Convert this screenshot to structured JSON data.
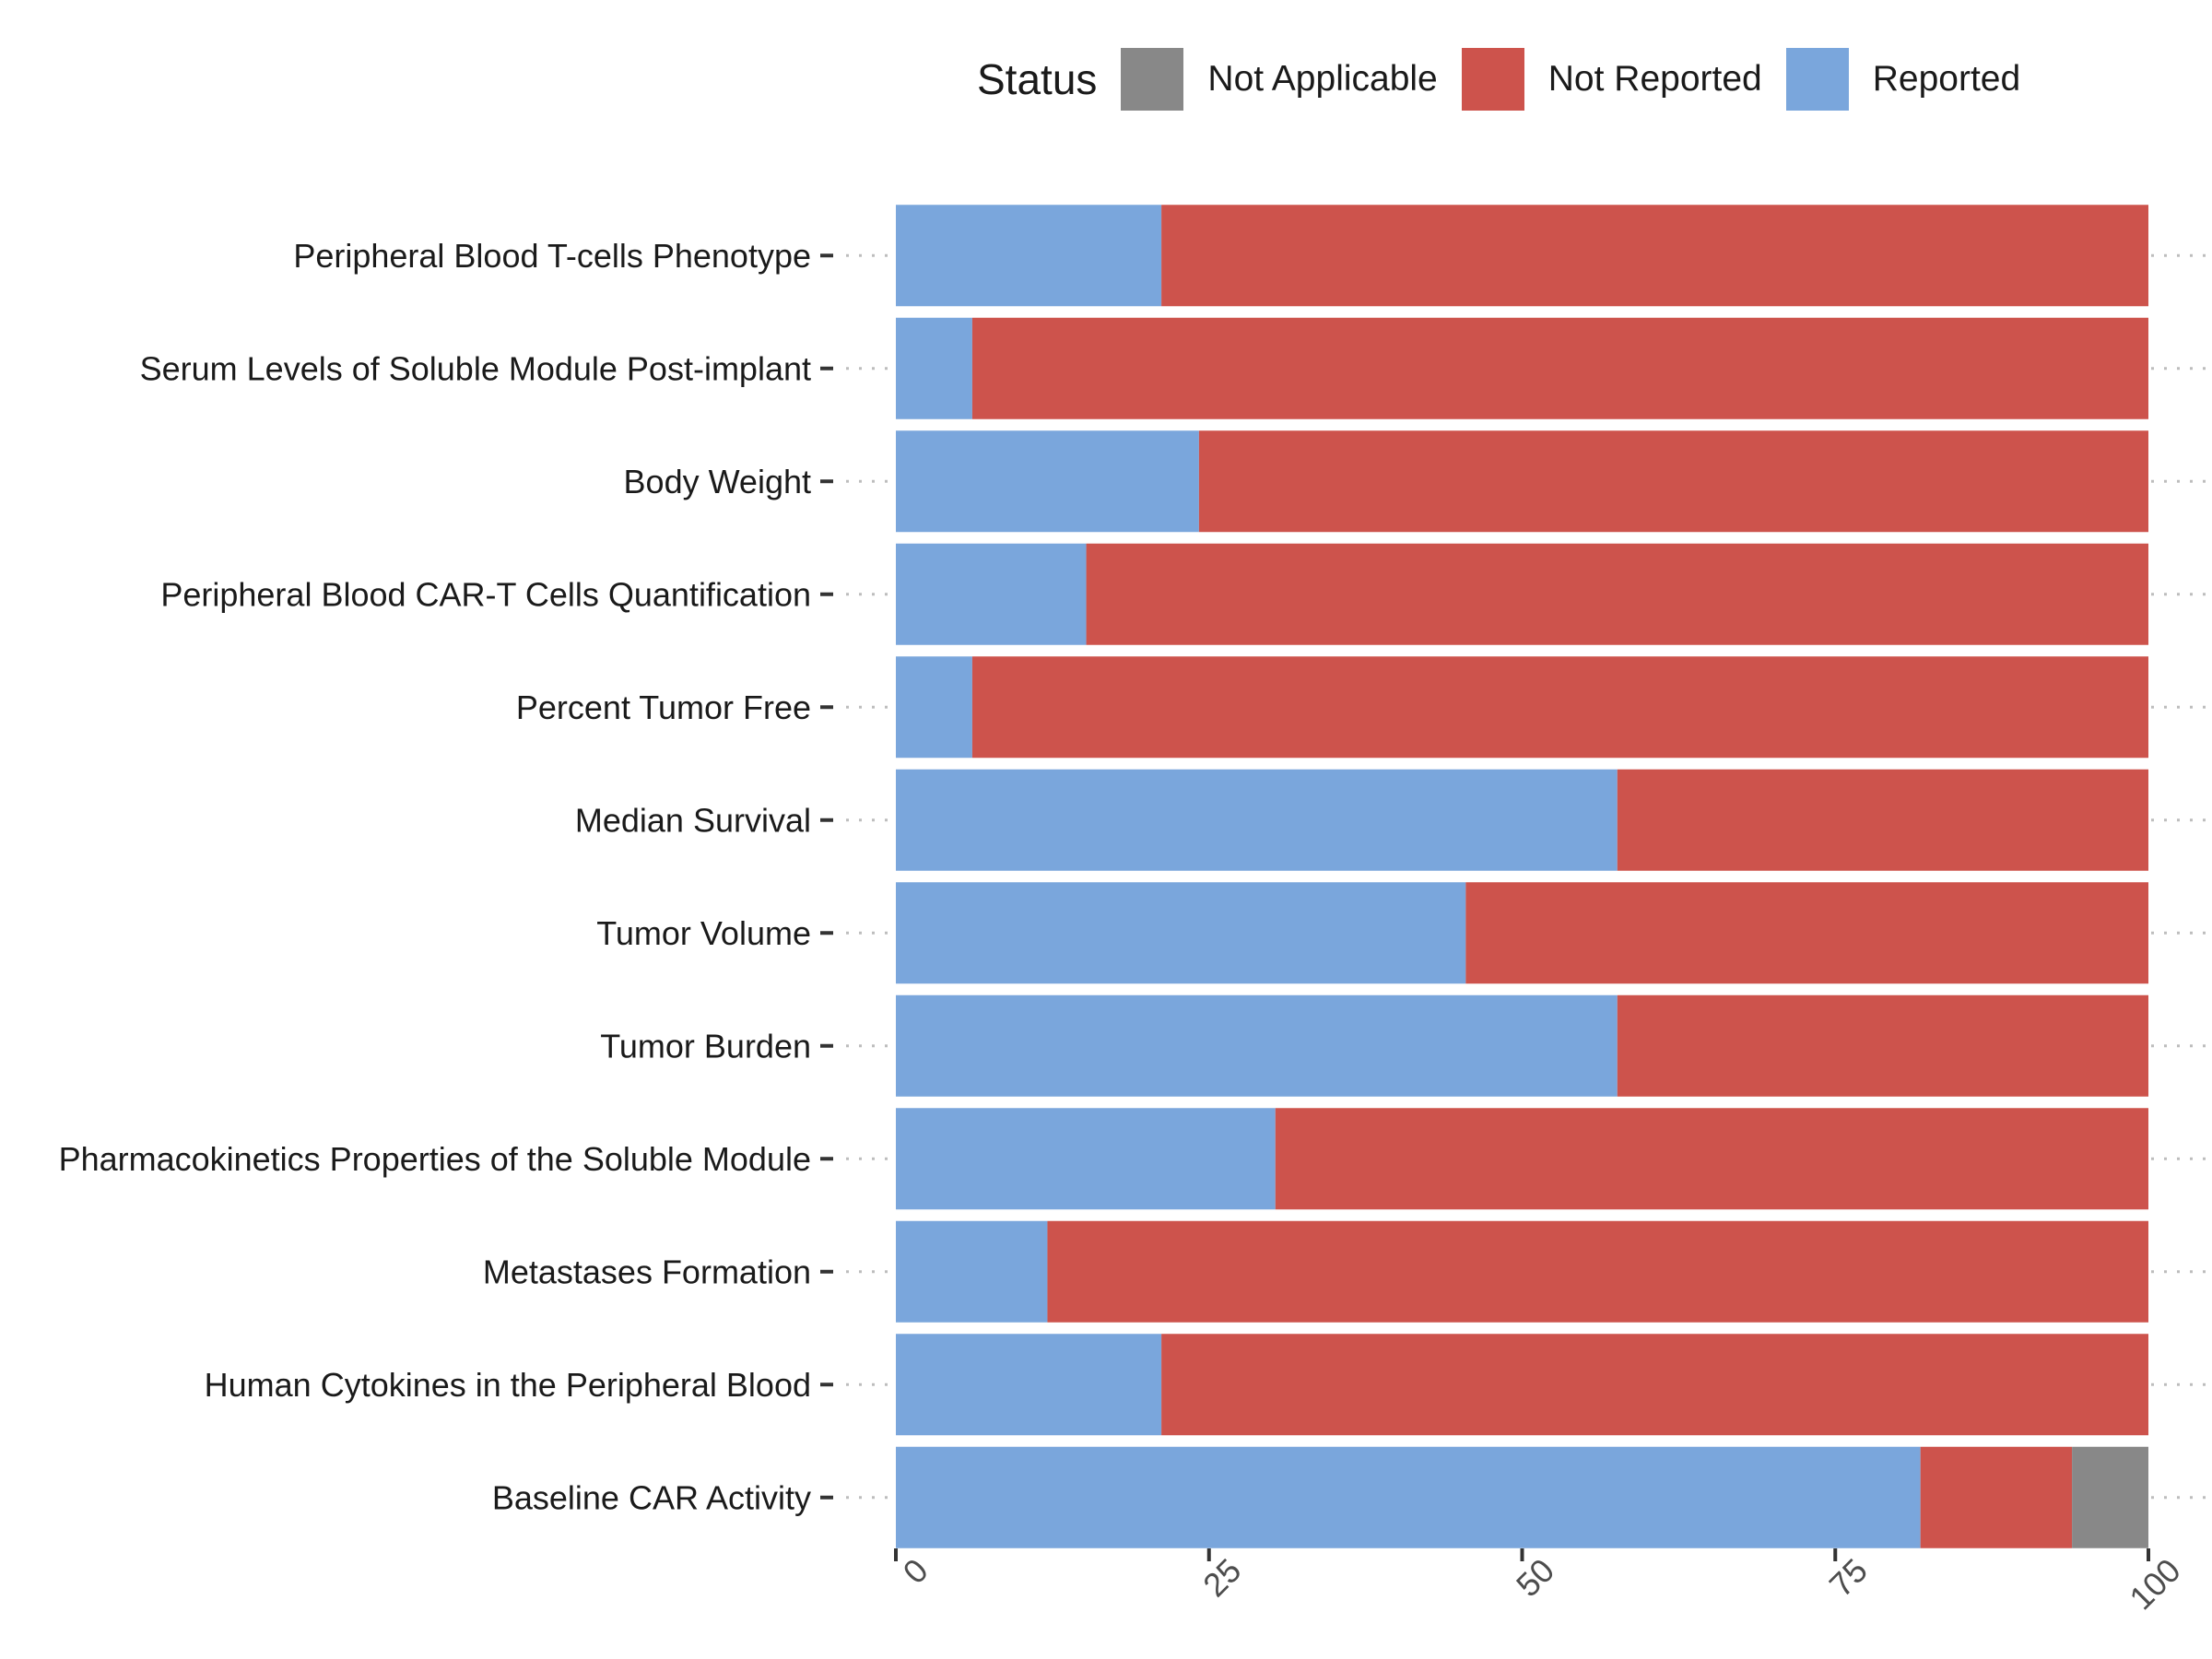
{
  "chart_data": {
    "type": "bar",
    "orientation": "horizontal",
    "stacked": true,
    "legend": {
      "title": "Status",
      "position": "top",
      "entries": [
        {
          "name": "Not Applicable",
          "color": "#888888"
        },
        {
          "name": "Not Reported",
          "color": "#CD534C"
        },
        {
          "name": "Reported",
          "color": "#7AA6DC"
        }
      ]
    },
    "categories": [
      "Peripheral Blood T-cells Phenotype",
      "Serum Levels of Soluble Module Post-implant",
      "Body Weight",
      "Peripheral Blood CAR-T Cells Quantification",
      "Percent Tumor Free",
      "Median Survival",
      "Tumor Volume",
      "Tumor Burden",
      "Pharmacokinetics Properties of the Soluble Module",
      "Metastases Formation",
      "Human Cytokines in the Peripheral Blood",
      "Baseline CAR Activity"
    ],
    "series": [
      {
        "name": "Reported",
        "color": "#7AA6DC",
        "values": [
          21.2,
          6.1,
          24.2,
          15.2,
          6.1,
          57.6,
          45.5,
          57.6,
          30.3,
          12.1,
          21.2,
          81.8
        ]
      },
      {
        "name": "Not Reported",
        "color": "#CD534C",
        "values": [
          78.8,
          93.9,
          75.8,
          84.8,
          93.9,
          42.4,
          54.5,
          42.4,
          69.7,
          87.9,
          78.8,
          12.1
        ]
      },
      {
        "name": "Not Applicable",
        "color": "#888888",
        "values": [
          0,
          0,
          0,
          0,
          0,
          0,
          0,
          0,
          0,
          0,
          0,
          6.1
        ]
      }
    ],
    "xlim": [
      0,
      100
    ],
    "xticks": [
      "0",
      "25",
      "50",
      "75",
      "100"
    ],
    "xlabel": "",
    "ylabel": "",
    "title": "",
    "grid": "dotted horizontal guides per category"
  }
}
